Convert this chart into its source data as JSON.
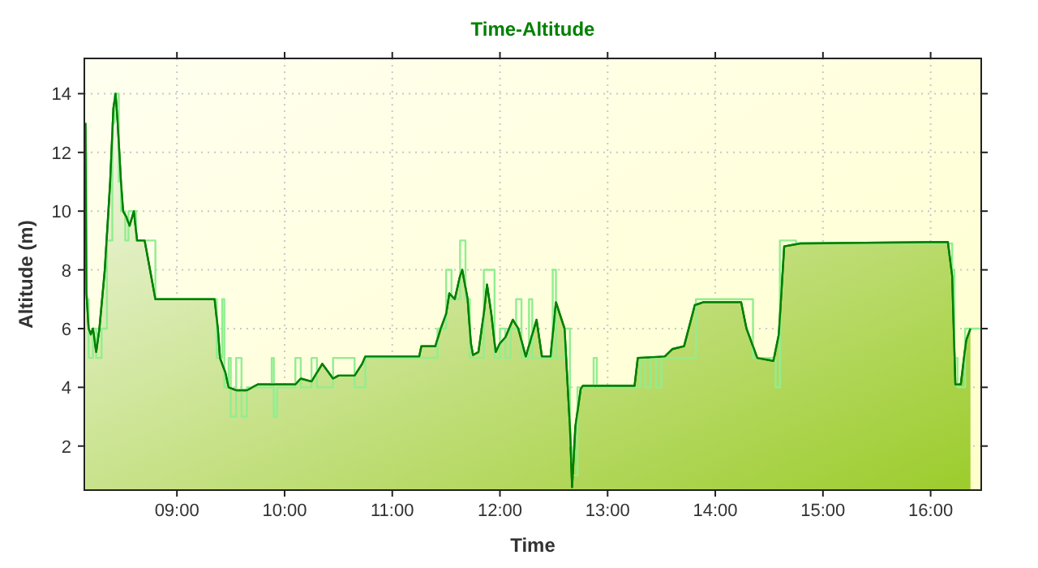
{
  "chart_data": {
    "type": "area",
    "title": "Time-Altitude",
    "xlabel": "Time",
    "ylabel": "Altitude (m)",
    "xlim": [
      8.14,
      16.47
    ],
    "ylim": [
      0.5,
      15.2
    ],
    "xticks": [
      {
        "value": 9,
        "label": "09:00"
      },
      {
        "value": 10,
        "label": "10:00"
      },
      {
        "value": 11,
        "label": "11:00"
      },
      {
        "value": 12,
        "label": "12:00"
      },
      {
        "value": 13,
        "label": "13:00"
      },
      {
        "value": 14,
        "label": "14:00"
      },
      {
        "value": 15,
        "label": "15:00"
      },
      {
        "value": 16,
        "label": "16:00"
      }
    ],
    "yticks": [
      2,
      4,
      6,
      8,
      10,
      12,
      14
    ],
    "grid": true,
    "series": [
      {
        "type": "step",
        "color": "#90ee90",
        "x": [
          8.15,
          8.16,
          8.18,
          8.22,
          8.25,
          8.3,
          8.35,
          8.4,
          8.42,
          8.44,
          8.46,
          8.48,
          8.52,
          8.55,
          8.6,
          8.62,
          8.72,
          8.8,
          9.35,
          9.37,
          9.42,
          9.44,
          9.48,
          9.5,
          9.55,
          9.6,
          9.65,
          9.88,
          9.9,
          9.93,
          10.1,
          10.15,
          10.25,
          10.3,
          10.45,
          10.6,
          10.65,
          10.75,
          11.4,
          11.42,
          11.5,
          11.55,
          11.63,
          11.68,
          11.72,
          11.8,
          11.85,
          11.9,
          11.95,
          12.0,
          12.05,
          12.1,
          12.15,
          12.2,
          12.27,
          12.3,
          12.4,
          12.49,
          12.52,
          12.6,
          12.65,
          12.67,
          12.72,
          12.85,
          12.87,
          12.9,
          13.27,
          13.3,
          13.35,
          13.4,
          13.45,
          13.5,
          13.6,
          13.7,
          13.82,
          14.25,
          14.35,
          14.55,
          14.56,
          14.6,
          14.75,
          16.2,
          16.22,
          16.25,
          16.32,
          16.46
        ],
        "values": [
          12,
          7,
          5,
          6,
          5,
          6,
          9,
          13,
          14,
          14,
          11,
          10,
          9,
          10,
          10,
          9,
          9,
          7,
          7,
          5,
          7,
          4,
          5,
          3,
          5,
          3,
          4,
          5,
          3,
          4,
          5,
          4,
          5,
          4,
          5,
          5,
          4,
          5,
          5,
          6,
          8,
          7,
          9,
          7,
          5,
          5,
          8,
          8,
          5,
          6,
          5,
          6,
          7,
          5,
          7,
          5,
          5,
          8,
          5,
          6,
          2,
          1,
          4,
          4,
          5,
          4,
          4,
          5,
          4,
          5,
          4,
          5,
          5,
          5,
          7,
          7,
          5,
          5,
          4,
          9,
          8.9,
          8,
          5,
          4,
          6,
          6
        ]
      },
      {
        "color": "#008000",
        "x": [
          8.15,
          8.16,
          8.18,
          8.2,
          8.22,
          8.25,
          8.28,
          8.33,
          8.38,
          8.41,
          8.43,
          8.45,
          8.48,
          8.5,
          8.53,
          8.56,
          8.6,
          8.63,
          8.7,
          8.75,
          8.8,
          9.35,
          9.38,
          9.4,
          9.45,
          9.48,
          9.55,
          9.65,
          9.75,
          9.9,
          10.1,
          10.15,
          10.25,
          10.35,
          10.45,
          10.5,
          10.65,
          10.72,
          10.75,
          11.25,
          11.27,
          11.4,
          11.45,
          11.5,
          11.53,
          11.58,
          11.63,
          11.65,
          11.7,
          11.73,
          11.75,
          11.8,
          11.85,
          11.88,
          11.92,
          11.96,
          12.0,
          12.05,
          12.12,
          12.17,
          12.24,
          12.34,
          12.39,
          12.47,
          12.52,
          12.6,
          12.65,
          12.67,
          12.7,
          12.75,
          12.77,
          13.25,
          13.28,
          13.53,
          13.6,
          13.71,
          13.81,
          13.89,
          14.24,
          14.29,
          14.39,
          14.54,
          14.59,
          14.64,
          14.79,
          16.16,
          16.2,
          16.23,
          16.28,
          16.33,
          16.37
        ],
        "values": [
          13,
          7.2,
          6,
          5.8,
          6,
          5.2,
          6,
          8,
          11,
          13.5,
          14,
          13,
          11,
          10,
          9.8,
          9.5,
          10,
          9,
          9,
          8,
          7,
          7,
          6,
          5,
          4.5,
          4,
          3.9,
          3.9,
          4.1,
          4.1,
          4.1,
          4.3,
          4.2,
          4.8,
          4.3,
          4.4,
          4.4,
          4.8,
          5.05,
          5.05,
          5.4,
          5.4,
          6,
          6.5,
          7.2,
          7,
          7.8,
          8,
          7,
          5.5,
          5.1,
          5.2,
          6.5,
          7.5,
          6.5,
          5.2,
          5.5,
          5.7,
          6.3,
          6,
          5.05,
          6.3,
          5.05,
          5.05,
          6.9,
          6,
          2.65,
          0.6,
          2.65,
          3.95,
          4.05,
          4.05,
          5,
          5.05,
          5.3,
          5.4,
          6.8,
          6.9,
          6.9,
          6,
          5,
          4.9,
          5.8,
          8.8,
          8.9,
          8.95,
          7.8,
          4.1,
          4.1,
          5.6,
          6
        ]
      }
    ]
  }
}
